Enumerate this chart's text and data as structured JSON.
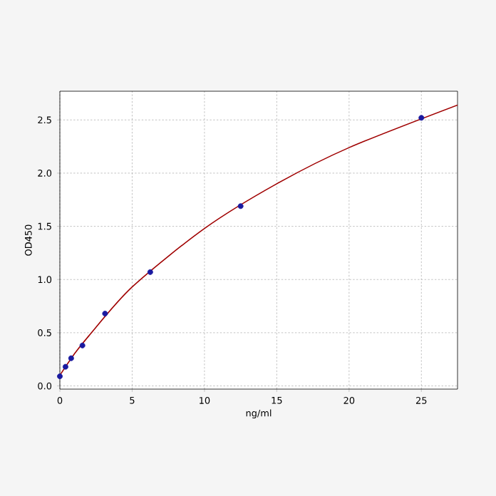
{
  "chart_data": {
    "type": "scatter",
    "xlabel": "ng/ml",
    "ylabel": "OD450",
    "xlim": [
      0,
      27.5
    ],
    "ylim": [
      -0.03,
      2.77
    ],
    "xticks": [
      0,
      5,
      10,
      15,
      20,
      25
    ],
    "yticks": [
      {
        "value": 0,
        "label": "0.0"
      },
      0.5,
      {
        "value": 1,
        "label": "1.0"
      },
      1.5,
      {
        "value": 2,
        "label": "2.0"
      },
      2.5
    ],
    "grid": true,
    "series": [
      {
        "type": "line",
        "marker": "none",
        "color": "#a00000",
        "x": [
          0,
          1,
          2,
          5,
          10,
          15,
          20,
          27.5
        ],
        "values": [
          0.1,
          0.3,
          0.47,
          0.93,
          1.48,
          1.9,
          2.24,
          2.64
        ]
      },
      {
        "marker": "circle",
        "color": "#1a1aa0",
        "x": [
          0,
          0.39,
          0.78,
          1.56,
          3.125,
          6.25,
          12.5,
          25
        ],
        "values": [
          0.09,
          0.18,
          0.26,
          0.38,
          0.68,
          1.07,
          1.69,
          2.52
        ]
      }
    ]
  }
}
